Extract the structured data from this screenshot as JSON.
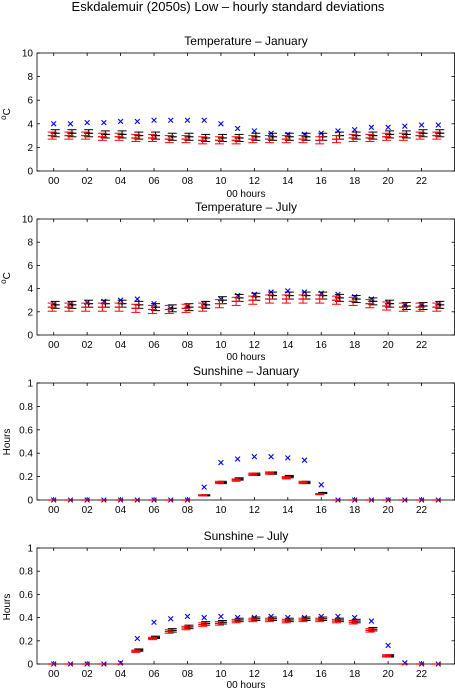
{
  "figure": {
    "title": "Eskdalemuir (2050s) Low – hourly standard deviations"
  },
  "colors": {
    "cross": "#0000ff",
    "black_marker": "#000000",
    "red_marker": "#ff0000",
    "axes": "#000000"
  },
  "chart_data": [
    {
      "type": "scatter",
      "title": "Temperature – January",
      "xlabel": "00 hours",
      "ylabel": "°C",
      "ylabel_parts": {
        "sup": "o",
        "main": "C"
      },
      "xlim": [
        -1,
        24
      ],
      "ylim": [
        0,
        10
      ],
      "xticks": [
        0,
        2,
        4,
        6,
        8,
        10,
        12,
        14,
        16,
        18,
        20,
        22
      ],
      "xticklabels": [
        "00",
        "02",
        "04",
        "06",
        "08",
        "10",
        "12",
        "14",
        "16",
        "18",
        "20",
        "22"
      ],
      "yticks": [
        0,
        2,
        4,
        6,
        8,
        10
      ],
      "yticklabels": [
        "0",
        "2",
        "4",
        "6",
        "8",
        "10"
      ],
      "grid": false,
      "x": [
        0,
        1,
        2,
        3,
        4,
        5,
        6,
        7,
        8,
        9,
        10,
        11,
        12,
        13,
        14,
        15,
        16,
        17,
        18,
        19,
        20,
        21,
        22,
        23
      ],
      "series": [
        {
          "marker": "x",
          "color": "#0000ff",
          "values": [
            4.0,
            4.0,
            4.1,
            4.1,
            4.2,
            4.2,
            4.3,
            4.3,
            4.3,
            4.3,
            4.0,
            3.6,
            3.4,
            3.2,
            3.1,
            3.1,
            3.2,
            3.4,
            3.5,
            3.7,
            3.7,
            3.8,
            3.9,
            3.9
          ]
        },
        {
          "marker": "dot-errorbar",
          "color": "#000000",
          "values": [
            3.2,
            3.2,
            3.2,
            3.1,
            3.1,
            3.0,
            3.0,
            2.9,
            2.9,
            2.8,
            2.8,
            2.8,
            2.9,
            2.9,
            2.9,
            2.9,
            2.9,
            3.0,
            3.0,
            3.0,
            3.1,
            3.1,
            3.2,
            3.2
          ],
          "error": [
            0.3,
            0.3,
            0.3,
            0.3,
            0.3,
            0.3,
            0.3,
            0.3,
            0.3,
            0.3,
            0.3,
            0.3,
            0.3,
            0.3,
            0.3,
            0.3,
            0.3,
            0.3,
            0.3,
            0.3,
            0.3,
            0.3,
            0.3,
            0.3
          ]
        },
        {
          "marker": "dash-errorbar",
          "color": "#ff0000",
          "values": [
            3.0,
            3.0,
            3.0,
            2.9,
            2.9,
            2.8,
            2.8,
            2.7,
            2.7,
            2.6,
            2.6,
            2.6,
            2.7,
            2.7,
            2.7,
            2.7,
            2.6,
            2.7,
            2.8,
            2.8,
            2.9,
            2.9,
            3.0,
            3.0
          ],
          "error": [
            0.3,
            0.3,
            0.3,
            0.3,
            0.3,
            0.3,
            0.3,
            0.3,
            0.3,
            0.3,
            0.3,
            0.3,
            0.3,
            0.3,
            0.3,
            0.3,
            0.3,
            0.3,
            0.3,
            0.3,
            0.3,
            0.3,
            0.3,
            0.3
          ]
        }
      ]
    },
    {
      "type": "scatter",
      "title": "Temperature – July",
      "xlabel": "00 hours",
      "ylabel": "°C",
      "ylabel_parts": {
        "sup": "o",
        "main": "C"
      },
      "xlim": [
        -1,
        24
      ],
      "ylim": [
        0,
        10
      ],
      "xticks": [
        0,
        2,
        4,
        6,
        8,
        10,
        12,
        14,
        16,
        18,
        20,
        22
      ],
      "xticklabels": [
        "00",
        "02",
        "04",
        "06",
        "08",
        "10",
        "12",
        "14",
        "16",
        "18",
        "20",
        "22"
      ],
      "yticks": [
        0,
        2,
        4,
        6,
        8,
        10
      ],
      "yticklabels": [
        "0",
        "2",
        "4",
        "6",
        "8",
        "10"
      ],
      "grid": false,
      "x": [
        0,
        1,
        2,
        3,
        4,
        5,
        6,
        7,
        8,
        9,
        10,
        11,
        12,
        13,
        14,
        15,
        16,
        17,
        18,
        19,
        20,
        21,
        22,
        23
      ],
      "series": [
        {
          "marker": "x",
          "color": "#0000ff",
          "values": [
            2.7,
            2.7,
            2.8,
            2.9,
            3.0,
            3.1,
            2.7,
            2.3,
            2.5,
            2.7,
            3.1,
            3.4,
            3.5,
            3.7,
            3.8,
            3.7,
            3.6,
            3.5,
            3.3,
            3.1,
            2.8,
            2.6,
            2.6,
            2.7
          ]
        },
        {
          "marker": "dot-errorbar",
          "color": "#000000",
          "values": [
            2.6,
            2.6,
            2.7,
            2.7,
            2.7,
            2.6,
            2.4,
            2.3,
            2.4,
            2.6,
            3.0,
            3.2,
            3.3,
            3.4,
            3.4,
            3.4,
            3.4,
            3.2,
            3.1,
            2.9,
            2.7,
            2.5,
            2.5,
            2.6
          ],
          "error": [
            0.3,
            0.3,
            0.3,
            0.3,
            0.3,
            0.3,
            0.3,
            0.3,
            0.3,
            0.3,
            0.3,
            0.3,
            0.3,
            0.3,
            0.3,
            0.3,
            0.3,
            0.3,
            0.3,
            0.3,
            0.3,
            0.3,
            0.3,
            0.3
          ]
        },
        {
          "marker": "dash-errorbar",
          "color": "#ff0000",
          "values": [
            2.4,
            2.4,
            2.4,
            2.4,
            2.4,
            2.3,
            2.2,
            2.2,
            2.3,
            2.4,
            2.7,
            2.9,
            3.0,
            3.1,
            3.1,
            3.1,
            3.1,
            3.0,
            2.9,
            2.7,
            2.5,
            2.4,
            2.4,
            2.4
          ],
          "error": [
            0.35,
            0.35,
            0.35,
            0.35,
            0.35,
            0.35,
            0.35,
            0.35,
            0.35,
            0.35,
            0.35,
            0.35,
            0.35,
            0.35,
            0.35,
            0.35,
            0.35,
            0.35,
            0.35,
            0.35,
            0.35,
            0.35,
            0.35,
            0.35
          ]
        }
      ]
    },
    {
      "type": "scatter",
      "title": "Sunshine – January",
      "xlabel": "00 hours",
      "ylabel": "Hours",
      "xlim": [
        -1,
        24
      ],
      "ylim": [
        0,
        1
      ],
      "xticks": [
        0,
        2,
        4,
        6,
        8,
        10,
        12,
        14,
        16,
        18,
        20,
        22
      ],
      "xticklabels": [
        "00",
        "02",
        "04",
        "06",
        "08",
        "10",
        "12",
        "14",
        "16",
        "18",
        "20",
        "22"
      ],
      "yticks": [
        0,
        0.2,
        0.4,
        0.6,
        0.8,
        1
      ],
      "yticklabels": [
        "0",
        "0.2",
        "0.4",
        "0.6",
        "0.8",
        "1"
      ],
      "grid": false,
      "x": [
        0,
        1,
        2,
        3,
        4,
        5,
        6,
        7,
        8,
        9,
        10,
        11,
        12,
        13,
        14,
        15,
        16,
        17,
        18,
        19,
        20,
        21,
        22,
        23
      ],
      "series": [
        {
          "marker": "x",
          "color": "#0000ff",
          "values": [
            0,
            0,
            0,
            0,
            0,
            0,
            0,
            0,
            0,
            0.11,
            0.32,
            0.35,
            0.37,
            0.37,
            0.36,
            0.34,
            0.13,
            0,
            0,
            0,
            0,
            0,
            0,
            0
          ]
        },
        {
          "marker": "dot-errorbar",
          "color": "#000000",
          "values": [
            0,
            0,
            0,
            0,
            0,
            0,
            0,
            0,
            0,
            0.04,
            0.15,
            0.18,
            0.22,
            0.23,
            0.2,
            0.15,
            0.06,
            0,
            0,
            0,
            0,
            0,
            0,
            0
          ],
          "error": [
            0,
            0,
            0,
            0,
            0,
            0,
            0,
            0,
            0,
            0.005,
            0.01,
            0.01,
            0.01,
            0.01,
            0.01,
            0.01,
            0.005,
            0,
            0,
            0,
            0,
            0,
            0,
            0
          ]
        },
        {
          "marker": "dash-errorbar",
          "color": "#ff0000",
          "values": [
            0,
            0,
            0,
            0,
            0,
            0,
            0,
            0,
            0,
            0.04,
            0.15,
            0.17,
            0.22,
            0.23,
            0.19,
            0.15,
            0.05,
            0,
            0,
            0,
            0,
            0,
            0,
            0
          ],
          "error": [
            0,
            0,
            0,
            0,
            0,
            0,
            0,
            0,
            0,
            0.005,
            0.01,
            0.01,
            0.01,
            0.01,
            0.01,
            0.01,
            0.005,
            0,
            0,
            0,
            0,
            0,
            0,
            0
          ]
        }
      ]
    },
    {
      "type": "scatter",
      "title": "Sunshine – July",
      "xlabel": "00 hours",
      "ylabel": "Hours",
      "xlim": [
        -1,
        24
      ],
      "ylim": [
        0,
        1
      ],
      "xticks": [
        0,
        2,
        4,
        6,
        8,
        10,
        12,
        14,
        16,
        18,
        20,
        22
      ],
      "xticklabels": [
        "00",
        "02",
        "04",
        "06",
        "08",
        "10",
        "12",
        "14",
        "16",
        "18",
        "20",
        "22"
      ],
      "yticks": [
        0,
        0.2,
        0.4,
        0.6,
        0.8,
        1
      ],
      "yticklabels": [
        "0",
        "0.2",
        "0.4",
        "0.6",
        "0.8",
        "1"
      ],
      "grid": false,
      "x": [
        0,
        1,
        2,
        3,
        4,
        5,
        6,
        7,
        8,
        9,
        10,
        11,
        12,
        13,
        14,
        15,
        16,
        17,
        18,
        19,
        20,
        21,
        22,
        23
      ],
      "series": [
        {
          "marker": "x",
          "color": "#0000ff",
          "values": [
            0,
            0,
            0,
            0,
            0.01,
            0.22,
            0.36,
            0.39,
            0.41,
            0.4,
            0.41,
            0.4,
            0.4,
            0.41,
            0.4,
            0.4,
            0.41,
            0.41,
            0.4,
            0.37,
            0.16,
            0.01,
            0,
            0
          ]
        },
        {
          "marker": "dot-errorbar",
          "color": "#000000",
          "values": [
            0,
            0,
            0,
            0,
            0,
            0.12,
            0.23,
            0.29,
            0.32,
            0.35,
            0.36,
            0.38,
            0.39,
            0.39,
            0.38,
            0.39,
            0.39,
            0.38,
            0.37,
            0.3,
            0.07,
            0,
            0,
            0
          ],
          "error": [
            0,
            0,
            0,
            0,
            0,
            0.01,
            0.01,
            0.015,
            0.015,
            0.015,
            0.015,
            0.015,
            0.015,
            0.015,
            0.015,
            0.015,
            0.015,
            0.015,
            0.015,
            0.015,
            0.01,
            0,
            0,
            0
          ]
        },
        {
          "marker": "dash-errorbar",
          "color": "#ff0000",
          "values": [
            0,
            0,
            0,
            0,
            0,
            0.11,
            0.22,
            0.28,
            0.31,
            0.34,
            0.35,
            0.37,
            0.38,
            0.38,
            0.37,
            0.38,
            0.38,
            0.37,
            0.36,
            0.29,
            0.07,
            0,
            0,
            0
          ],
          "error": [
            0,
            0,
            0,
            0,
            0,
            0.01,
            0.01,
            0.015,
            0.015,
            0.015,
            0.015,
            0.015,
            0.015,
            0.015,
            0.015,
            0.015,
            0.015,
            0.015,
            0.015,
            0.015,
            0.01,
            0,
            0,
            0
          ]
        }
      ]
    }
  ]
}
